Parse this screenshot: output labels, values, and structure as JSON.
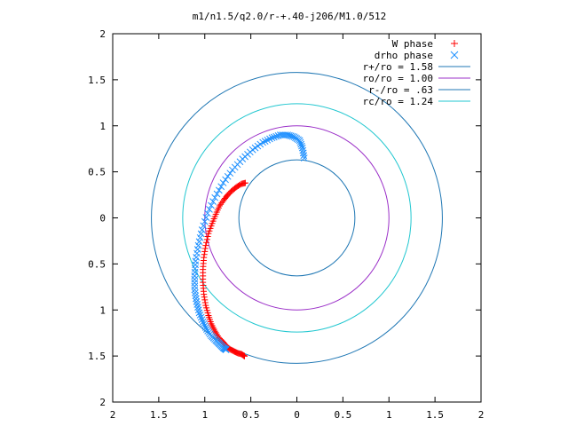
{
  "chart_data": {
    "type": "scatter",
    "title": "m1/n1.5/q2.0/r-+.40-j206/M1.0/512",
    "xlabel": "",
    "ylabel": "",
    "xlim": [
      -2,
      2
    ],
    "ylim": [
      -2,
      2
    ],
    "x_ticks": [
      -2,
      -1.5,
      -1,
      -0.5,
      0,
      0.5,
      1,
      1.5,
      2
    ],
    "y_ticks": [
      -2,
      -1.5,
      -1,
      -0.5,
      0,
      0.5,
      1,
      1.5,
      2
    ],
    "x_tick_labels": [
      "2",
      "1.5",
      "1",
      "0.5",
      "0",
      "0.5",
      "1",
      "1.5",
      "2"
    ],
    "y_tick_labels": [
      "2",
      "1.5",
      "1",
      "0.5",
      "0",
      "0.5",
      "1",
      "1.5",
      "2"
    ],
    "grid": false,
    "legend_position": "top-right",
    "series": [
      {
        "name": "W phase",
        "marker": "plus",
        "color": "#ff0000",
        "x": [
          -0.56,
          -0.6,
          -0.65,
          -0.7,
          -0.75,
          -0.79,
          -0.84,
          -0.88,
          -0.92,
          -0.96,
          -0.99,
          -1.01,
          -1.02,
          -1.02,
          -1.01,
          -0.99,
          -0.96,
          -0.93,
          -0.89,
          -0.85,
          -0.8,
          -0.76,
          -0.72,
          -0.68,
          -0.64,
          -0.6,
          -0.57
        ],
        "y": [
          0.38,
          0.37,
          0.34,
          0.3,
          0.25,
          0.2,
          0.13,
          0.04,
          -0.06,
          -0.17,
          -0.3,
          -0.43,
          -0.56,
          -0.7,
          -0.83,
          -0.95,
          -1.06,
          -1.15,
          -1.23,
          -1.3,
          -1.35,
          -1.4,
          -1.43,
          -1.45,
          -1.47,
          -1.48,
          -1.5
        ]
      },
      {
        "name": "drho phase",
        "marker": "cross",
        "color": "#1e90ff",
        "x": [
          0.08,
          0.06,
          0.03,
          -0.03,
          -0.1,
          -0.18,
          -0.27,
          -0.37,
          -0.48,
          -0.59,
          -0.7,
          -0.8,
          -0.89,
          -0.97,
          -1.03,
          -1.07,
          -1.1,
          -1.11,
          -1.11,
          -1.09,
          -1.06,
          -1.02,
          -0.98,
          -0.93,
          -0.88,
          -0.84,
          -0.8,
          -0.77
        ],
        "y": [
          0.65,
          0.76,
          0.84,
          0.88,
          0.9,
          0.9,
          0.87,
          0.82,
          0.74,
          0.64,
          0.52,
          0.38,
          0.22,
          0.05,
          -0.13,
          -0.3,
          -0.47,
          -0.63,
          -0.78,
          -0.91,
          -1.03,
          -1.13,
          -1.21,
          -1.28,
          -1.33,
          -1.37,
          -1.41,
          -1.43
        ]
      }
    ],
    "circles": [
      {
        "name": "r+/ro = 1.58",
        "radius": 1.58,
        "color": "#1f77b4"
      },
      {
        "name": "ro/ro = 1.00",
        "radius": 1.0,
        "color": "#9b30c8"
      },
      {
        "name": "r-/ro = .63",
        "radius": 0.63,
        "color": "#1f77b4"
      },
      {
        "name": "rc/ro = 1.24",
        "radius": 1.24,
        "color": "#22c7d0"
      }
    ]
  }
}
